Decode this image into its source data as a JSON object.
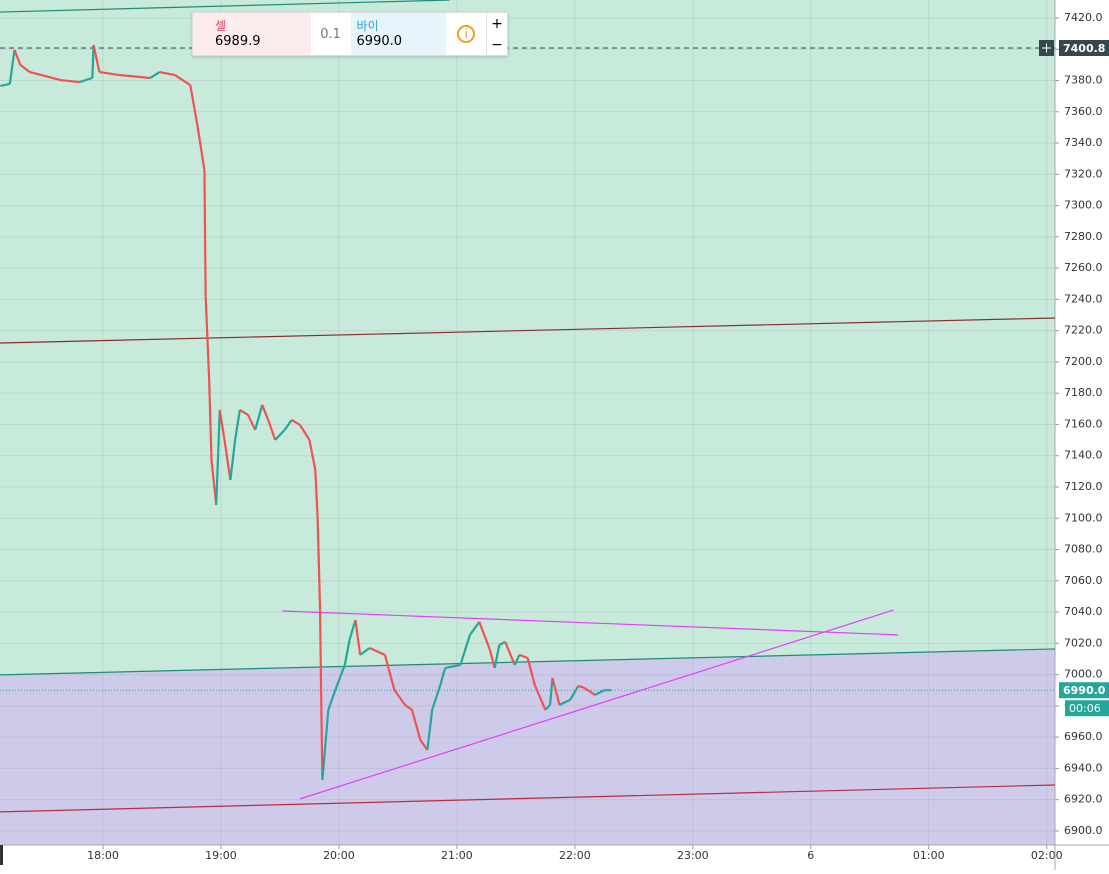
{
  "chart_data": {
    "type": "line",
    "x": [
      17.13,
      17.21,
      17.25,
      17.3,
      17.38,
      17.64,
      17.8,
      17.91,
      17.92,
      17.97,
      18.14,
      18.4,
      18.48,
      18.61,
      18.74,
      18.8,
      18.86,
      18.87,
      18.9,
      18.92,
      18.96,
      18.99,
      19.03,
      19.08,
      19.12,
      19.16,
      19.23,
      19.29,
      19.35,
      19.4,
      19.46,
      19.54,
      19.6,
      19.67,
      19.75,
      19.8,
      19.82,
      19.84,
      19.85,
      19.86,
      19.91,
      19.97,
      20.05,
      20.09,
      20.14,
      20.18,
      20.26,
      20.39,
      20.47,
      20.56,
      20.62,
      20.69,
      20.75,
      20.79,
      20.86,
      20.9,
      21.03,
      21.11,
      21.19,
      21.28,
      21.32,
      21.36,
      21.41,
      21.49,
      21.53,
      21.6,
      21.66,
      21.75,
      21.79,
      21.81,
      21.87,
      21.96,
      22.03,
      22.08,
      22.17,
      22.25,
      22.31
    ],
    "values": [
      7376.5,
      7377.8,
      7399.5,
      7389.9,
      7385.4,
      7380.3,
      7379.0,
      7381.6,
      7402.7,
      7385.4,
      7383.5,
      7381.6,
      7385.4,
      7383.5,
      7377.1,
      7351.5,
      7322.8,
      7242.8,
      7188.5,
      7137.3,
      7108.5,
      7169.3,
      7150.1,
      7124.5,
      7150.1,
      7169.3,
      7166.1,
      7156.5,
      7172.5,
      7162.9,
      7150.1,
      7156.5,
      7162.9,
      7159.7,
      7150.1,
      7130.9,
      7098.9,
      7041.3,
      6983.8,
      6932.6,
      6977.4,
      6990.2,
      7006.2,
      7022.2,
      7034.9,
      7012.6,
      7017.0,
      7012.6,
      6990.2,
      6980.6,
      6977.4,
      6958.2,
      6951.8,
      6977.4,
      6993.4,
      7004.2,
      7006.2,
      7025.3,
      7033.7,
      7015.8,
      7004.2,
      7019.0,
      7020.9,
      7006.2,
      7012.6,
      7010.6,
      6993.4,
      6977.4,
      6980.6,
      6997.8,
      6980.6,
      6983.8,
      6992.8,
      6991.5,
      6987.0,
      6990.0,
      6990.0
    ],
    "up_color": "#26a69a",
    "down_color": "#ef5350",
    "xlim": [
      17.127,
      26.07
    ],
    "ylim": [
      6891,
      7431.5
    ],
    "xticks": [
      {
        "value": 18,
        "label": "18:00"
      },
      {
        "value": 19,
        "label": "19:00"
      },
      {
        "value": 20,
        "label": "20:00"
      },
      {
        "value": 21,
        "label": "21:00"
      },
      {
        "value": 22,
        "label": "22:00"
      },
      {
        "value": 23,
        "label": "23:00"
      },
      {
        "value": 24,
        "label": "6"
      },
      {
        "value": 25,
        "label": "01:00"
      },
      {
        "value": 26,
        "label": "02:00"
      }
    ],
    "yticks": [
      {
        "value": 6900,
        "label": "6900.0"
      },
      {
        "value": 6920,
        "label": "6920.0"
      },
      {
        "value": 6940,
        "label": "6940.0"
      },
      {
        "value": 6960,
        "label": "6960.0"
      },
      {
        "value": 6980,
        "label": "6980.0"
      },
      {
        "value": 7000,
        "label": "7000.0"
      },
      {
        "value": 7020,
        "label": "7020.0"
      },
      {
        "value": 7040,
        "label": "7040.0"
      },
      {
        "value": 7060,
        "label": "7060.0"
      },
      {
        "value": 7080,
        "label": "7080.0"
      },
      {
        "value": 7100,
        "label": "7100.0"
      },
      {
        "value": 7120,
        "label": "7120.0"
      },
      {
        "value": 7140,
        "label": "7140.0"
      },
      {
        "value": 7160,
        "label": "7160.0"
      },
      {
        "value": 7180,
        "label": "7180.0"
      },
      {
        "value": 7200,
        "label": "7200.0"
      },
      {
        "value": 7220,
        "label": "7220.0"
      },
      {
        "value": 7240,
        "label": "7240.0"
      },
      {
        "value": 7260,
        "label": "7260.0"
      },
      {
        "value": 7280,
        "label": "7280.0"
      },
      {
        "value": 7300,
        "label": "7300.0"
      },
      {
        "value": 7320,
        "label": "7320.0"
      },
      {
        "value": 7340,
        "label": "7340.0"
      },
      {
        "value": 7360,
        "label": "7360.0"
      },
      {
        "value": 7380,
        "label": "7380.0"
      },
      {
        "value": 7400,
        "label": "7400.0"
      },
      {
        "value": 7420,
        "label": "7420.0"
      }
    ],
    "grid": true,
    "trend_lines": [
      {
        "x": [
          17.127,
          20.94
        ],
        "y": [
          7423.8,
          7431.5
        ],
        "color": "#1e8c74"
      },
      {
        "x": [
          17.127,
          26.07
        ],
        "y": [
          7212.1,
          7228.1
        ],
        "color": "#8b2d2d"
      },
      {
        "x": [
          17.127,
          26.07
        ],
        "y": [
          6999.8,
          7016.4
        ],
        "color": "#1e8c74"
      },
      {
        "x": [
          17.127,
          26.07
        ],
        "y": [
          6912.2,
          6929.4
        ],
        "color": "#c0283c"
      },
      {
        "x": [
          19.52,
          24.74
        ],
        "y": [
          7040.7,
          7025.4
        ],
        "color": "#e040fb"
      },
      {
        "x": [
          19.67,
          24.7
        ],
        "y": [
          6920.5,
          7041.3
        ],
        "color": "#e040fb"
      }
    ],
    "zone_line": 2,
    "zone_above_color": "#c8eadb",
    "zone_below_color": "#cecbea",
    "price_lines": [
      {
        "value": 7400.8,
        "label": "7400.8",
        "color": "#37474f",
        "style": "dashed"
      },
      {
        "value": 6990.0,
        "label": "6990.0",
        "color": "#26a69a",
        "style": "dotted"
      }
    ],
    "countdown": "00:06"
  },
  "order_panel": {
    "sell_label": "셀",
    "sell_price": "6989.9",
    "spread": "0.1",
    "buy_label": "바이",
    "buy_price": "6990.0",
    "plus": "+",
    "minus": "−",
    "info": "i"
  }
}
